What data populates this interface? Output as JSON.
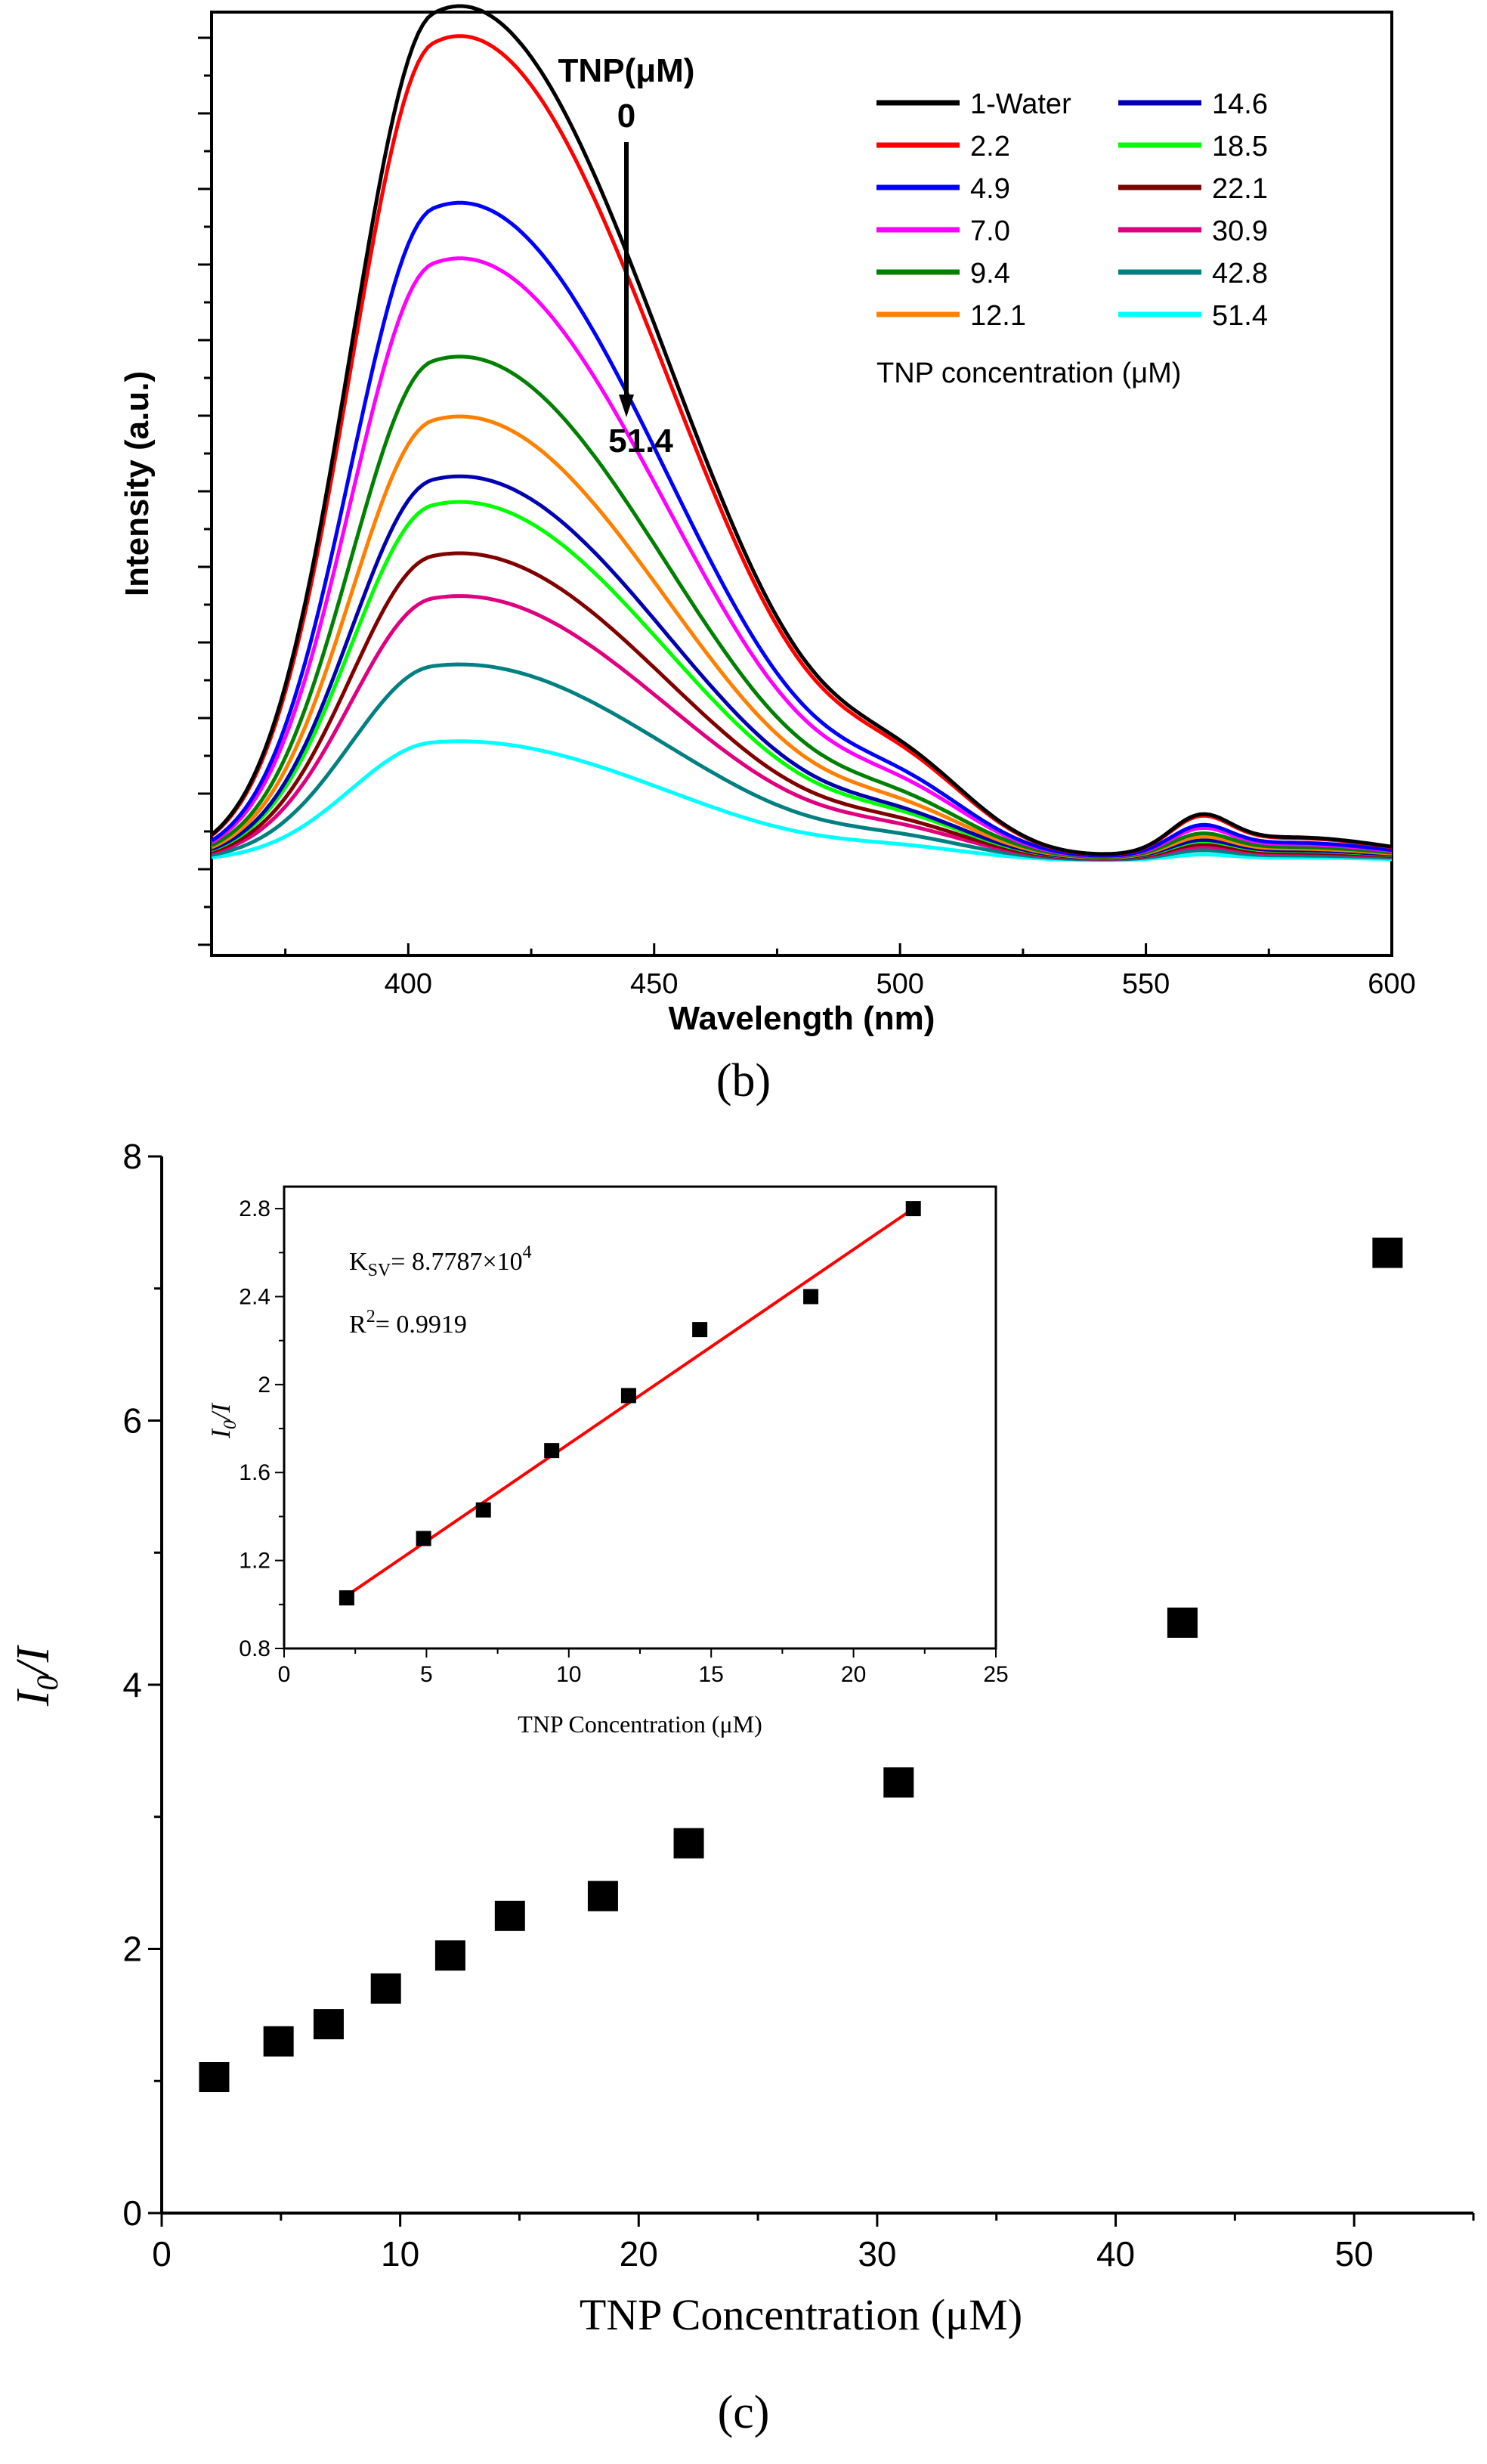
{
  "chart_data": [
    {
      "panel": "b",
      "type": "line",
      "xlabel": "Wavelength (nm)",
      "ylabel": "Intensity (a.u.)",
      "xlim": [
        360,
        600
      ],
      "ylim": [
        -0.12,
        1.08
      ],
      "x_ticks": [
        400,
        450,
        500,
        550,
        600
      ],
      "y_tick_labels": "none",
      "legend_title": "TNP concentration (μM)",
      "legend_placement": "top-right",
      "annotation": {
        "title": "TNP(μM)",
        "start": "0",
        "end": "51.4"
      },
      "peak_nm": 405,
      "series": [
        {
          "name": "1-Water",
          "color": "#000000",
          "peak": 1.0
        },
        {
          "name": "2.2",
          "color": "#ff0000",
          "peak": 0.965
        },
        {
          "name": "4.9",
          "color": "#0000ff",
          "peak": 0.77
        },
        {
          "name": "7.0",
          "color": "#ff00ff",
          "peak": 0.705
        },
        {
          "name": "9.4",
          "color": "#008000",
          "peak": 0.59
        },
        {
          "name": "12.1",
          "color": "#ff8000",
          "peak": 0.52
        },
        {
          "name": "14.6",
          "color": "#0000b0",
          "peak": 0.45
        },
        {
          "name": "18.5",
          "color": "#00ff00",
          "peak": 0.42
        },
        {
          "name": "22.1",
          "color": "#800000",
          "peak": 0.36
        },
        {
          "name": "30.9",
          "color": "#e0007f",
          "peak": 0.31
        },
        {
          "name": "42.8",
          "color": "#008080",
          "peak": 0.23
        },
        {
          "name": "51.4",
          "color": "#00ffff",
          "peak": 0.14
        }
      ]
    },
    {
      "panel": "c",
      "type": "scatter",
      "xlabel": "TNP Concentration (μM)",
      "ylabel": "I0/I",
      "xlim": [
        0,
        55
      ],
      "ylim": [
        0,
        8
      ],
      "x_ticks": [
        0,
        10,
        20,
        30,
        40,
        50
      ],
      "y_ticks": [
        0,
        2,
        4,
        6,
        8
      ],
      "points": [
        {
          "x": 2.2,
          "y": 1.03
        },
        {
          "x": 4.9,
          "y": 1.3
        },
        {
          "x": 7.0,
          "y": 1.43
        },
        {
          "x": 9.4,
          "y": 1.7
        },
        {
          "x": 12.1,
          "y": 1.95
        },
        {
          "x": 14.6,
          "y": 2.25
        },
        {
          "x": 18.5,
          "y": 2.4
        },
        {
          "x": 22.1,
          "y": 2.8
        },
        {
          "x": 30.9,
          "y": 3.26
        },
        {
          "x": 42.8,
          "y": 4.47
        },
        {
          "x": 51.4,
          "y": 7.27
        }
      ],
      "marker_color": "#000000"
    },
    {
      "panel": "c-inset",
      "type": "scatter",
      "xlabel": "TNP Concentration (μM)",
      "ylabel": "I0/I",
      "xlim": [
        0,
        25
      ],
      "ylim": [
        0.8,
        2.9
      ],
      "x_ticks": [
        0,
        5,
        10,
        15,
        20,
        25
      ],
      "y_ticks": [
        0.8,
        1.2,
        1.6,
        2.0,
        2.4,
        2.8
      ],
      "points": [
        {
          "x": 2.2,
          "y": 1.03
        },
        {
          "x": 4.9,
          "y": 1.3
        },
        {
          "x": 7.0,
          "y": 1.43
        },
        {
          "x": 9.4,
          "y": 1.7
        },
        {
          "x": 12.1,
          "y": 1.95
        },
        {
          "x": 14.6,
          "y": 2.25
        },
        {
          "x": 18.5,
          "y": 2.4
        },
        {
          "x": 22.1,
          "y": 2.8
        }
      ],
      "fit_line": {
        "x": [
          2.2,
          22.1
        ],
        "y": [
          1.04,
          2.8
        ],
        "color": "#ff0000"
      },
      "annotation_ksv": "8.7787×10",
      "annotation_ksv_exponent": "4",
      "annotation_r2": "= 0.9919"
    }
  ],
  "captions": {
    "b": "(b)",
    "c": "(c)"
  }
}
